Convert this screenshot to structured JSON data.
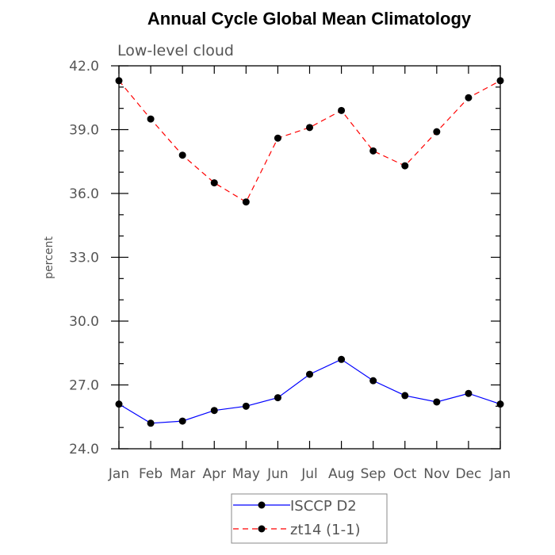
{
  "chart_data": {
    "type": "line",
    "title": "Annual Cycle Global Mean Climatology",
    "subtitle": "Low-level cloud",
    "ylabel": "percent",
    "xlabel": "",
    "categories": [
      "Jan",
      "Feb",
      "Mar",
      "Apr",
      "May",
      "Jun",
      "Jul",
      "Aug",
      "Sep",
      "Oct",
      "Nov",
      "Dec",
      "Jan"
    ],
    "ylim": [
      24.0,
      42.0
    ],
    "yticks": [
      "24.0",
      "27.0",
      "30.0",
      "33.0",
      "36.0",
      "39.0",
      "42.0"
    ],
    "series": [
      {
        "name": "ISCCP D2",
        "color": "#0000ff",
        "dash": "solid",
        "values": [
          26.1,
          25.2,
          25.3,
          25.8,
          26.0,
          26.4,
          27.5,
          28.2,
          27.2,
          26.5,
          26.2,
          26.6,
          26.1
        ]
      },
      {
        "name": "zt14 (1-1)",
        "color": "#ff0000",
        "dash": "dashed",
        "values": [
          41.3,
          39.5,
          37.8,
          36.5,
          35.6,
          38.6,
          39.1,
          39.9,
          38.0,
          37.3,
          38.9,
          40.5,
          41.3
        ]
      }
    ],
    "grid": false,
    "legend_position": "bottom"
  }
}
